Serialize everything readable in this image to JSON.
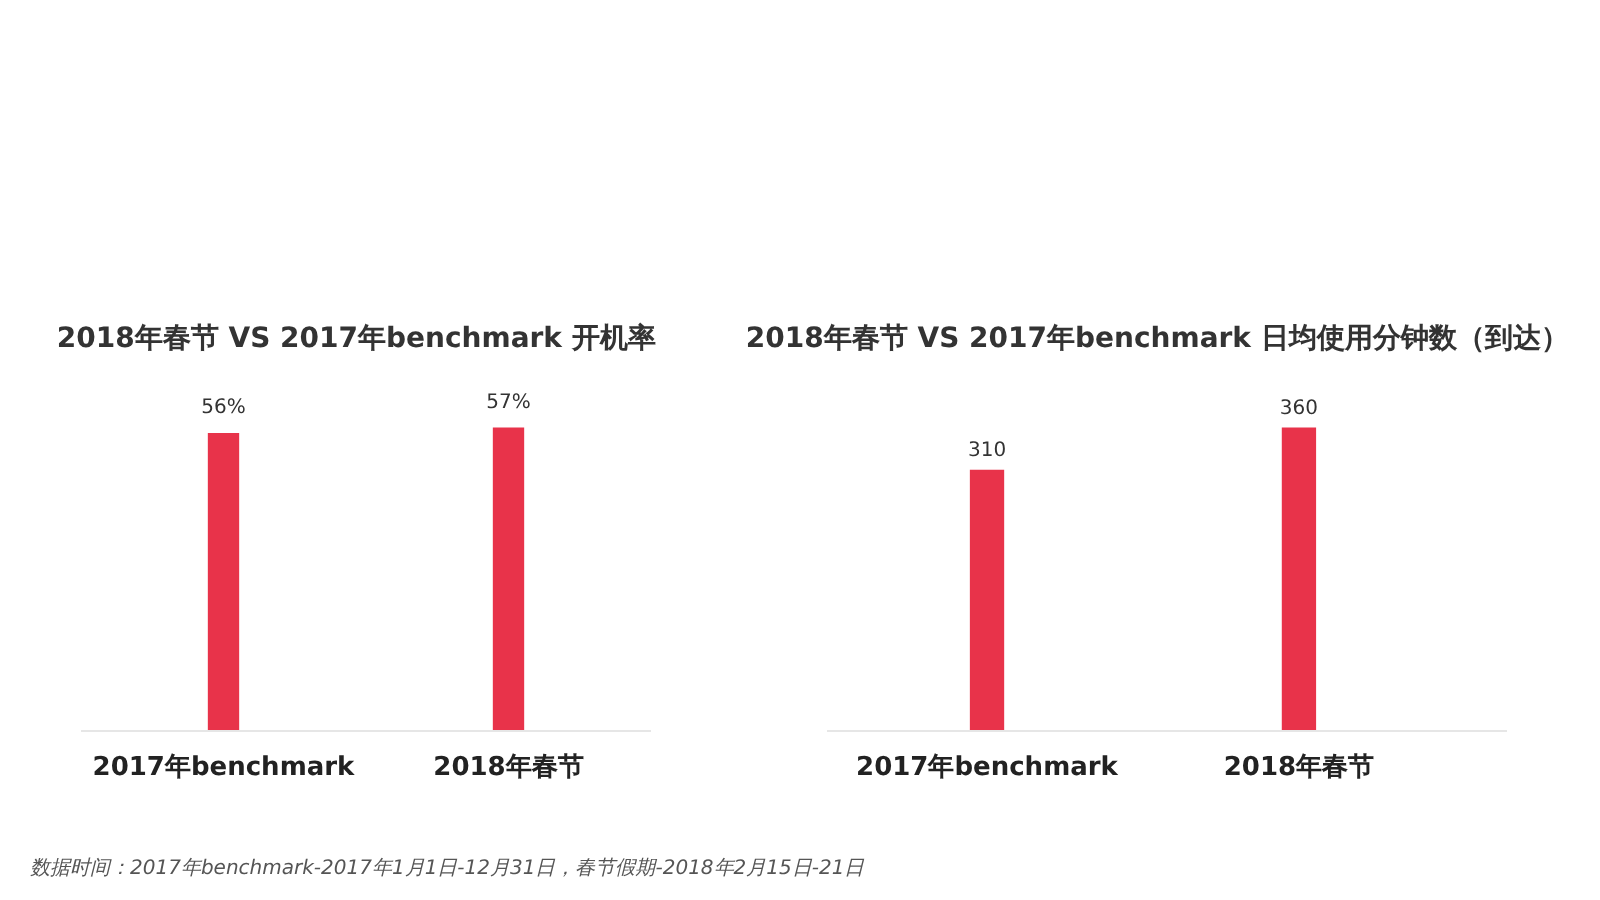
{
  "chart_data": [
    {
      "type": "bar",
      "title": "2018年春节  VS  2017年benchmark 开机率",
      "categories": [
        "2017年benchmark",
        "2018年春节"
      ],
      "values": [
        56,
        57
      ],
      "value_labels": [
        "56%",
        "57%"
      ],
      "color": "#e8334a",
      "tick_labels": "x",
      "annotations": [
        "数据时间：2017年benchmark-2017年1月1日-12月31日，春节假期-2018年2月15日-21日"
      ]
    },
    {
      "type": "bar",
      "title": "2018年春节  VS  2017年benchmark 日均使用分钟数（到达）",
      "categories": [
        "2017年benchmark",
        "2018年春节"
      ],
      "values": [
        310,
        360
      ],
      "data_labels": true,
      "color": "#e8334a",
      "tick_labels": "x"
    }
  ]
}
